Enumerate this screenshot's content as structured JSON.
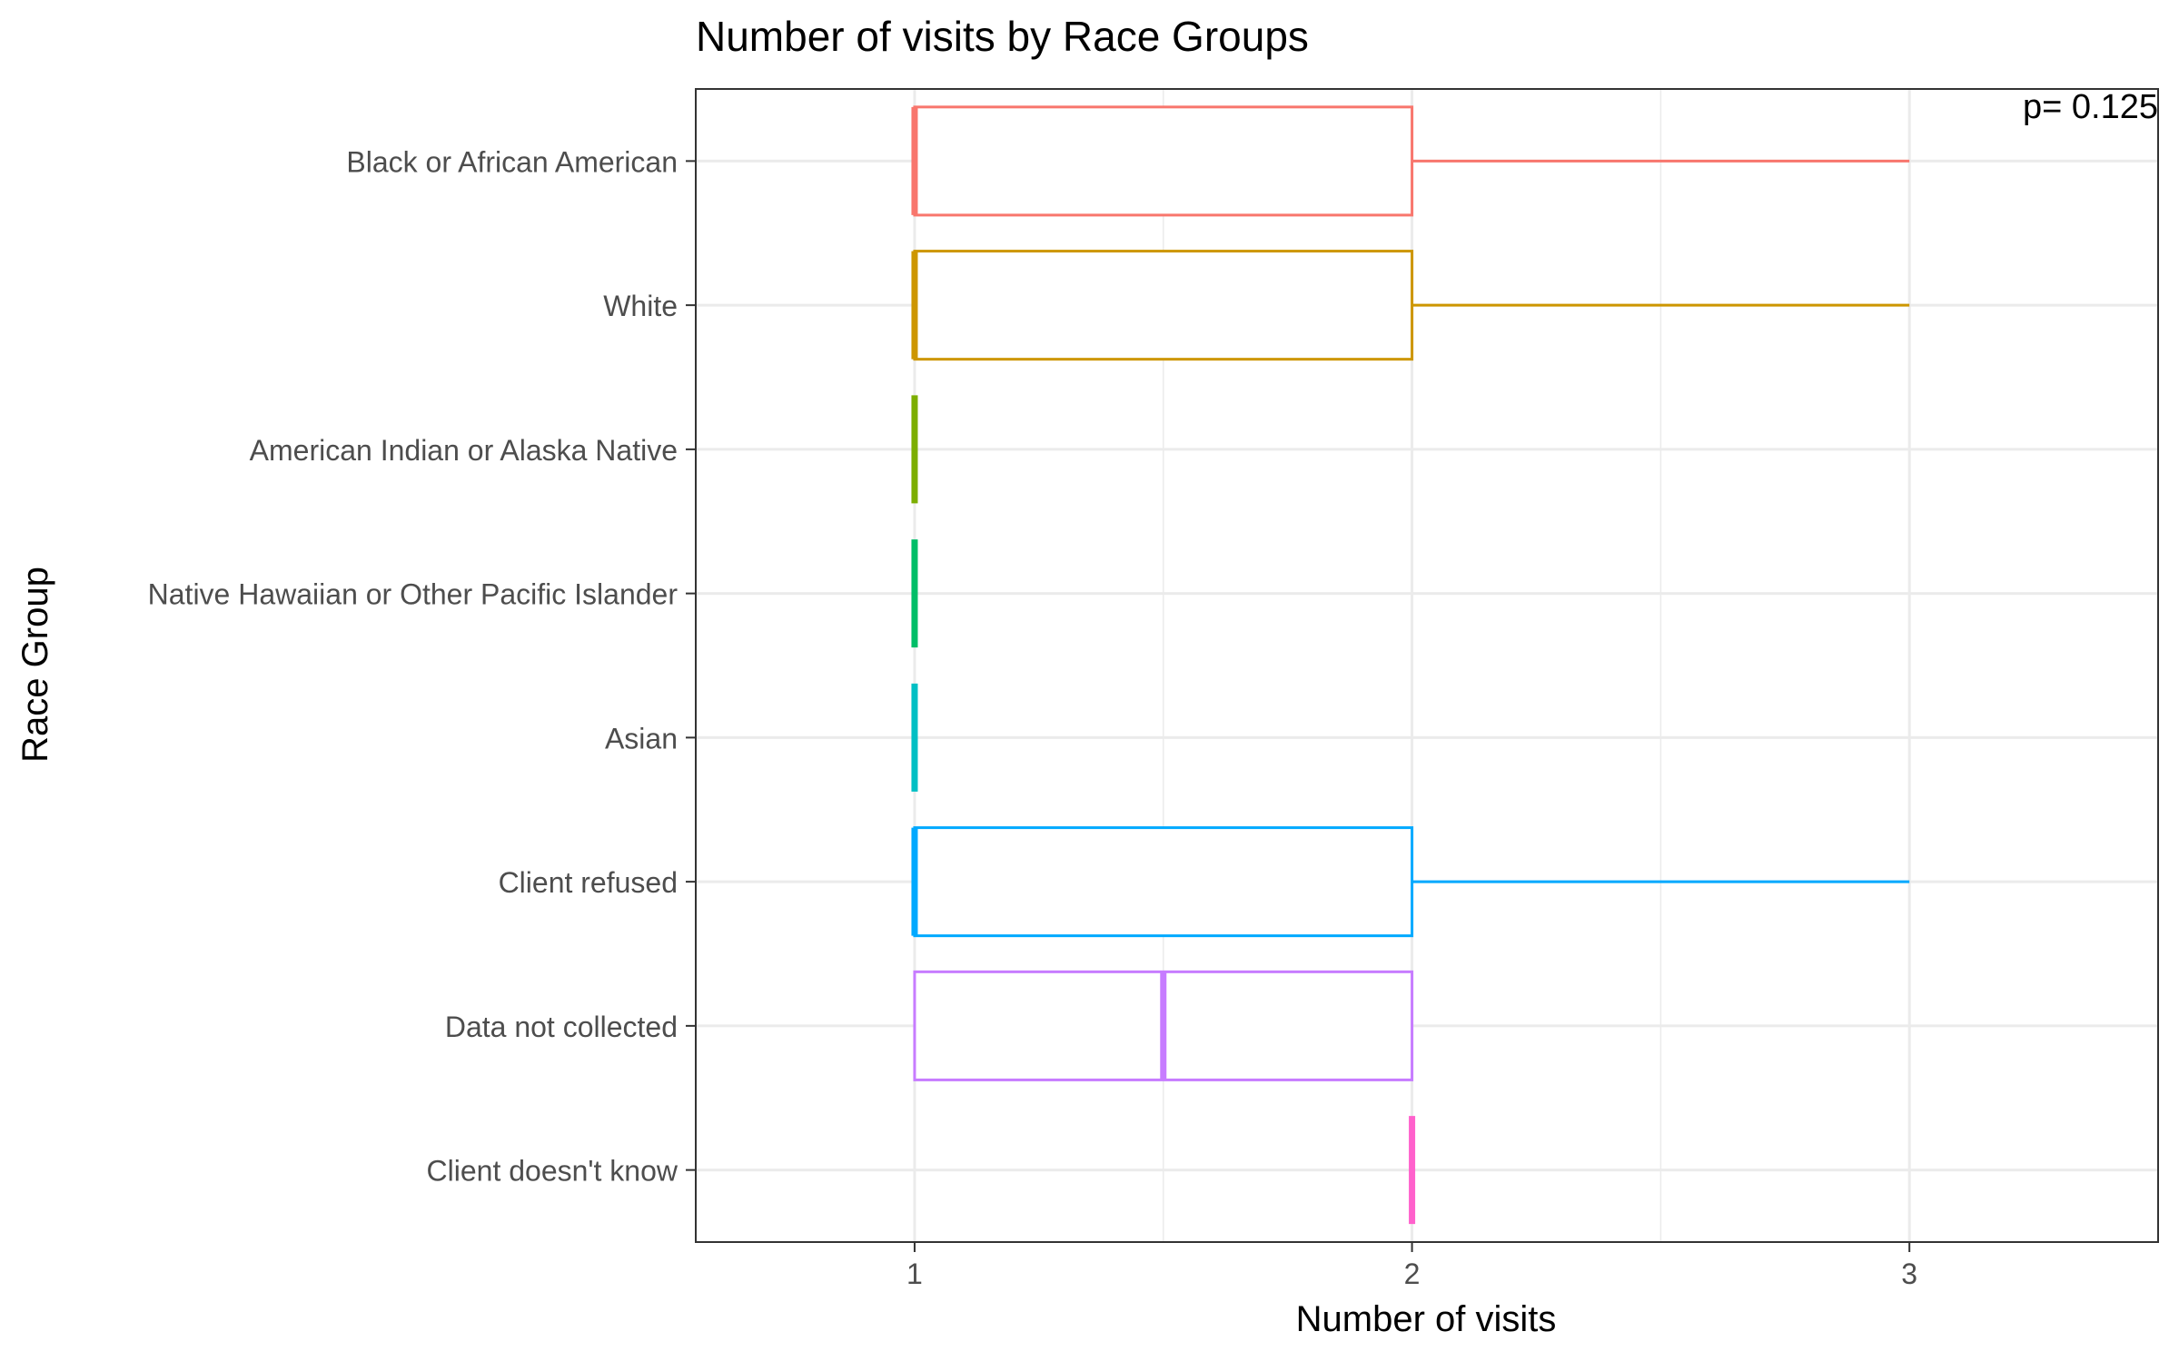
{
  "chart_data": {
    "type": "boxplot",
    "orientation": "horizontal",
    "title": "Number of visits by Race Groups",
    "xlabel": "Number of visits",
    "ylabel": "Race Group",
    "annotation": "p= 0.125",
    "xlim": [
      0.56,
      3.5
    ],
    "xticks": [
      1,
      2,
      3
    ],
    "grid": true,
    "categories": [
      "Black or African American",
      "White",
      "American Indian or Alaska Native",
      "Native Hawaiian or Other Pacific Islander",
      "Asian",
      "Client refused",
      "Data not collected",
      "Client doesn't know"
    ],
    "boxes": [
      {
        "category": "Black or African American",
        "min": 1,
        "q1": 1,
        "median": 1,
        "q3": 2,
        "max": 3,
        "color": "#F8766D"
      },
      {
        "category": "White",
        "min": 1,
        "q1": 1,
        "median": 1,
        "q3": 2,
        "max": 3,
        "color": "#CD9600"
      },
      {
        "category": "American Indian or Alaska Native",
        "min": 1,
        "q1": 1,
        "median": 1,
        "q3": 1,
        "max": 1,
        "color": "#7CAE00"
      },
      {
        "category": "Native Hawaiian or Other Pacific Islander",
        "min": 1,
        "q1": 1,
        "median": 1,
        "q3": 1,
        "max": 1,
        "color": "#00BE67"
      },
      {
        "category": "Asian",
        "min": 1,
        "q1": 1,
        "median": 1,
        "q3": 1,
        "max": 1,
        "color": "#00BFC4"
      },
      {
        "category": "Client refused",
        "min": 1,
        "q1": 1,
        "median": 1,
        "q3": 2,
        "max": 3,
        "color": "#00A9FF"
      },
      {
        "category": "Data not collected",
        "min": 1,
        "q1": 1,
        "median": 1.5,
        "q3": 2,
        "max": 2,
        "color": "#C77CFF"
      },
      {
        "category": "Client doesn't know",
        "min": 2,
        "q1": 2,
        "median": 2,
        "q3": 2,
        "max": 2,
        "color": "#FF61CC"
      }
    ]
  }
}
